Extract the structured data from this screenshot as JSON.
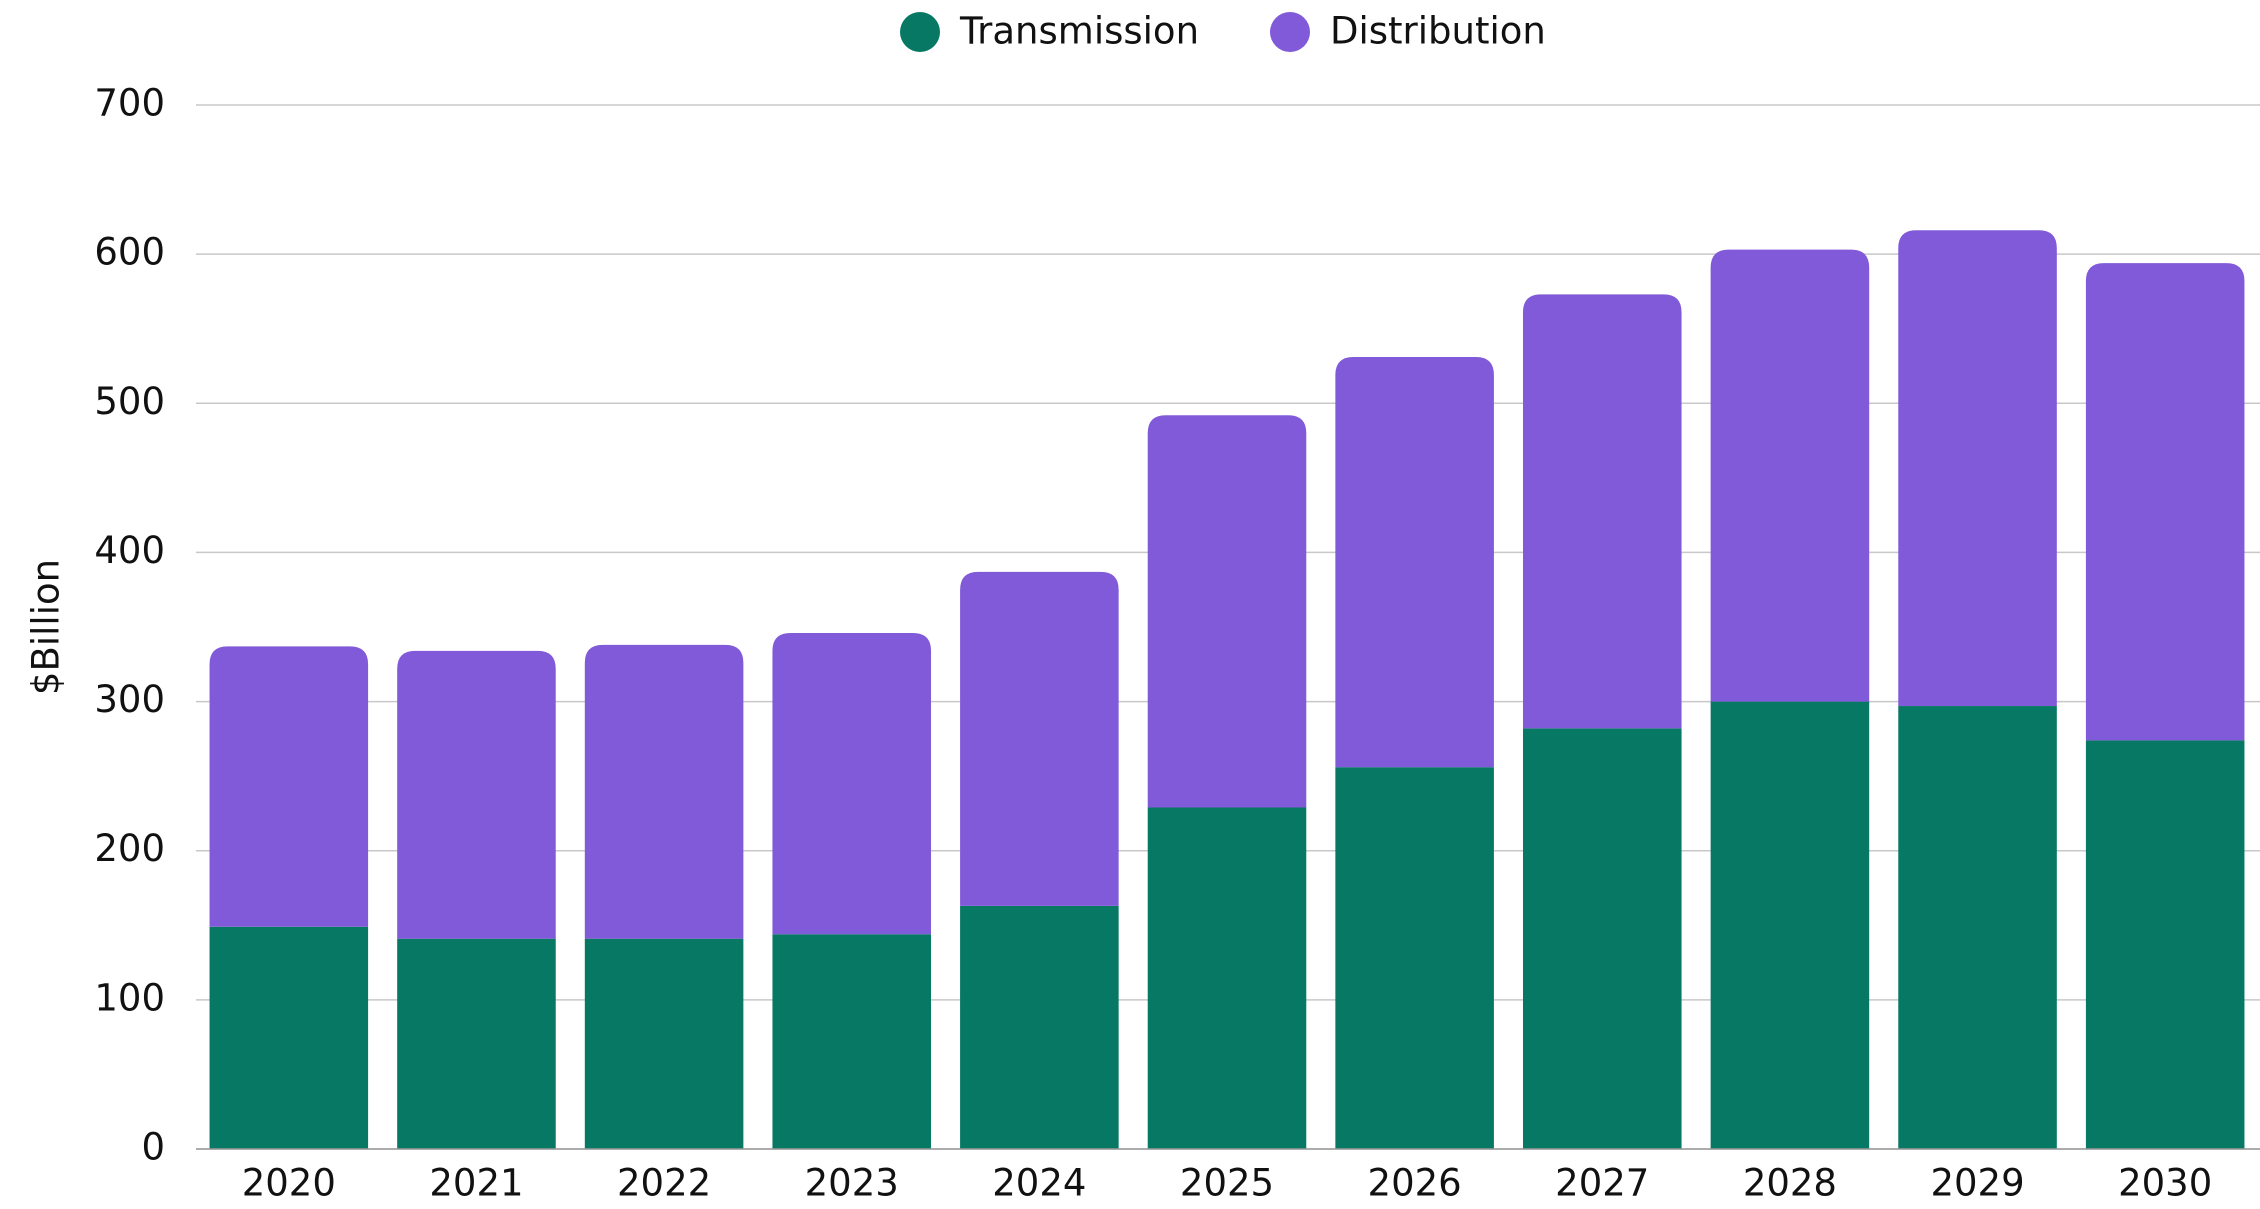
{
  "chart_data": {
    "type": "stacked_bar",
    "y_label": "$Billion",
    "categories": [
      "2020",
      "2021",
      "2022",
      "2023",
      "2024",
      "2025",
      "2026",
      "2027",
      "2028",
      "2029",
      "2030"
    ],
    "series": [
      {
        "name": "Transmission",
        "color": "#077864",
        "values": [
          149,
          141,
          141,
          144,
          163,
          229,
          256,
          282,
          300,
          297,
          274
        ]
      },
      {
        "name": "Distribution",
        "color": "#805ad8",
        "values": [
          188,
          193,
          197,
          202,
          224,
          263,
          275,
          291,
          303,
          319,
          320
        ]
      }
    ],
    "ylim": [
      0,
      700
    ],
    "yticks": [
      0,
      100,
      200,
      300,
      400,
      500,
      600,
      700
    ],
    "grid": true,
    "legend": "top"
  }
}
